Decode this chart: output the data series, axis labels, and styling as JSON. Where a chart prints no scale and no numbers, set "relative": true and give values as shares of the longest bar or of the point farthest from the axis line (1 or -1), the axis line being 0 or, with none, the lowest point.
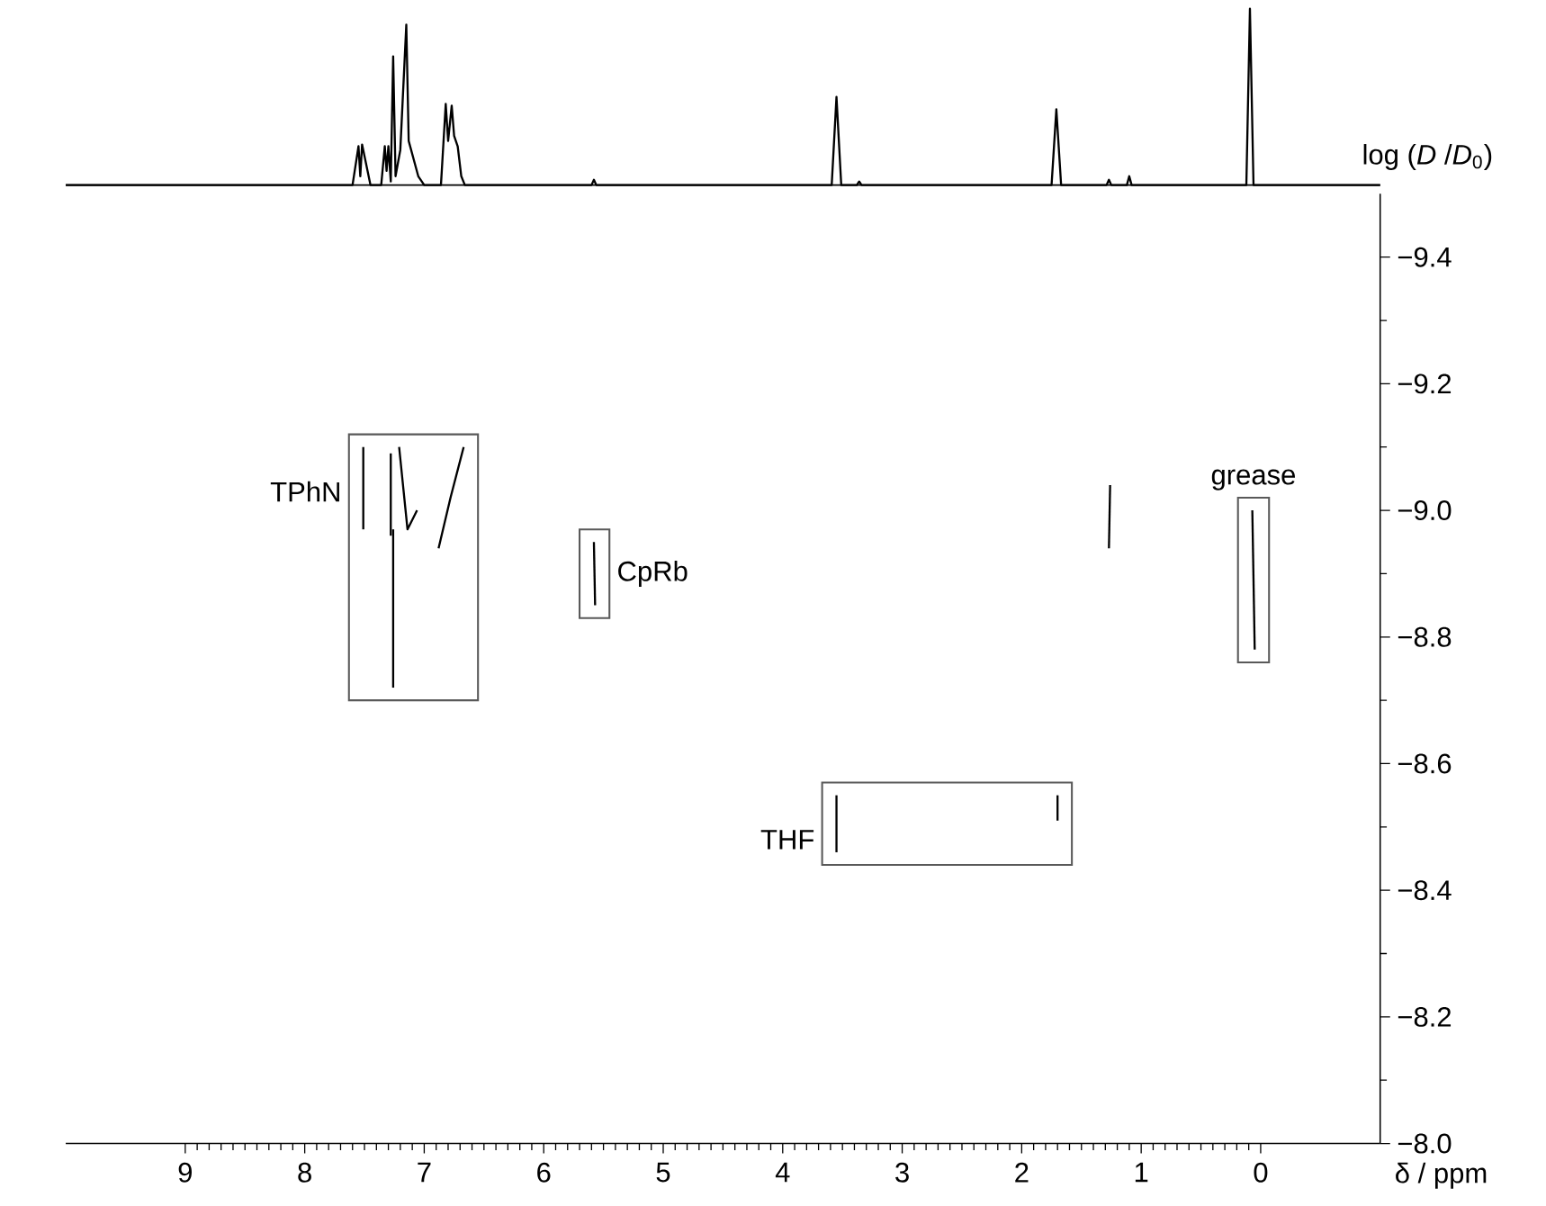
{
  "chart_data": [
    {
      "type": "line",
      "relative": true,
      "xlim": [
        10.0,
        -1.0
      ],
      "series": [
        {
          "color": "#000000",
          "x": [
            10.0,
            7.6,
            7.55,
            7.535,
            7.52,
            7.45,
            7.36,
            7.33,
            7.315,
            7.3,
            7.28,
            7.26,
            7.24,
            7.2,
            7.15,
            7.13,
            7.09,
            7.05,
            7.0,
            6.86,
            6.82,
            6.8,
            6.77,
            6.75,
            6.72,
            6.69,
            6.66,
            5.6,
            5.58,
            5.56,
            3.59,
            3.55,
            3.51,
            3.38,
            3.36,
            3.34,
            1.75,
            1.71,
            1.67,
            1.29,
            1.27,
            1.25,
            1.12,
            1.1,
            1.08,
            0.12,
            0.09,
            0.06,
            -1.0
          ],
          "values": [
            0,
            0,
            0.22,
            0.05,
            0.23,
            0,
            0,
            0.22,
            0.08,
            0.22,
            0.02,
            0.73,
            0.05,
            0.2,
            0.91,
            0.25,
            0.15,
            0.05,
            0,
            0,
            0.46,
            0.25,
            0.45,
            0.28,
            0.22,
            0.05,
            0,
            0,
            0.03,
            0,
            0,
            0.5,
            0,
            0,
            0.02,
            0,
            0,
            0.43,
            0,
            0,
            0.03,
            0,
            0,
            0.05,
            0,
            0,
            1,
            0,
            0
          ]
        }
      ]
    },
    {
      "type": "line",
      "xlabel": "δ / ppm",
      "ylabel": "log (*D* /*D*$_{0}$)",
      "xlim": [
        10.0,
        -1.0
      ],
      "ylim": [
        -8.0,
        -9.5
      ],
      "xticks": [
        9,
        8,
        7,
        6,
        5,
        4,
        3,
        2,
        1,
        0
      ],
      "yticks": [
        {
          "value": -9.4,
          "label": "−9.4"
        },
        {
          "value": -9.2,
          "label": "−9.2"
        },
        {
          "value": -9.0,
          "label": "−9.0"
        },
        {
          "value": -8.8,
          "label": "−8.8"
        },
        {
          "value": -8.6,
          "label": "−8.6"
        },
        {
          "value": -8.4,
          "label": "−8.4"
        },
        {
          "value": -8.2,
          "label": "−8.2"
        },
        {
          "value": -8.0,
          "label": "−8.0"
        }
      ],
      "series": [
        {
          "name": "TPhN",
          "color": "#000000",
          "x": [
            7.51,
            7.51,
            null,
            7.28,
            7.28,
            null,
            7.26,
            7.26,
            null,
            7.21,
            7.14,
            7.06,
            null,
            6.88,
            6.78,
            6.67
          ],
          "values": [
            -9.1,
            -8.97,
            null,
            -9.09,
            -8.96,
            null,
            -8.97,
            -8.72,
            null,
            -9.1,
            -8.97,
            -9.0,
            null,
            -8.94,
            -9.02,
            -9.1
          ]
        },
        {
          "name": "CpRb",
          "color": "#000000",
          "x": [
            5.58,
            5.57
          ],
          "values": [
            -8.95,
            -8.85
          ]
        },
        {
          "color": "#000000",
          "x": [
            1.26,
            1.27
          ],
          "values": [
            -9.04,
            -8.94
          ]
        },
        {
          "name": "grease",
          "color": "#000000",
          "x": [
            0.07,
            0.05
          ],
          "values": [
            -9.0,
            -8.78
          ]
        },
        {
          "name": "THF",
          "color": "#000000",
          "x": [
            3.55,
            3.55,
            null,
            1.7,
            1.7
          ],
          "values": [
            -8.55,
            -8.46,
            null,
            -8.55,
            -8.51
          ]
        }
      ]
    }
  ]
}
